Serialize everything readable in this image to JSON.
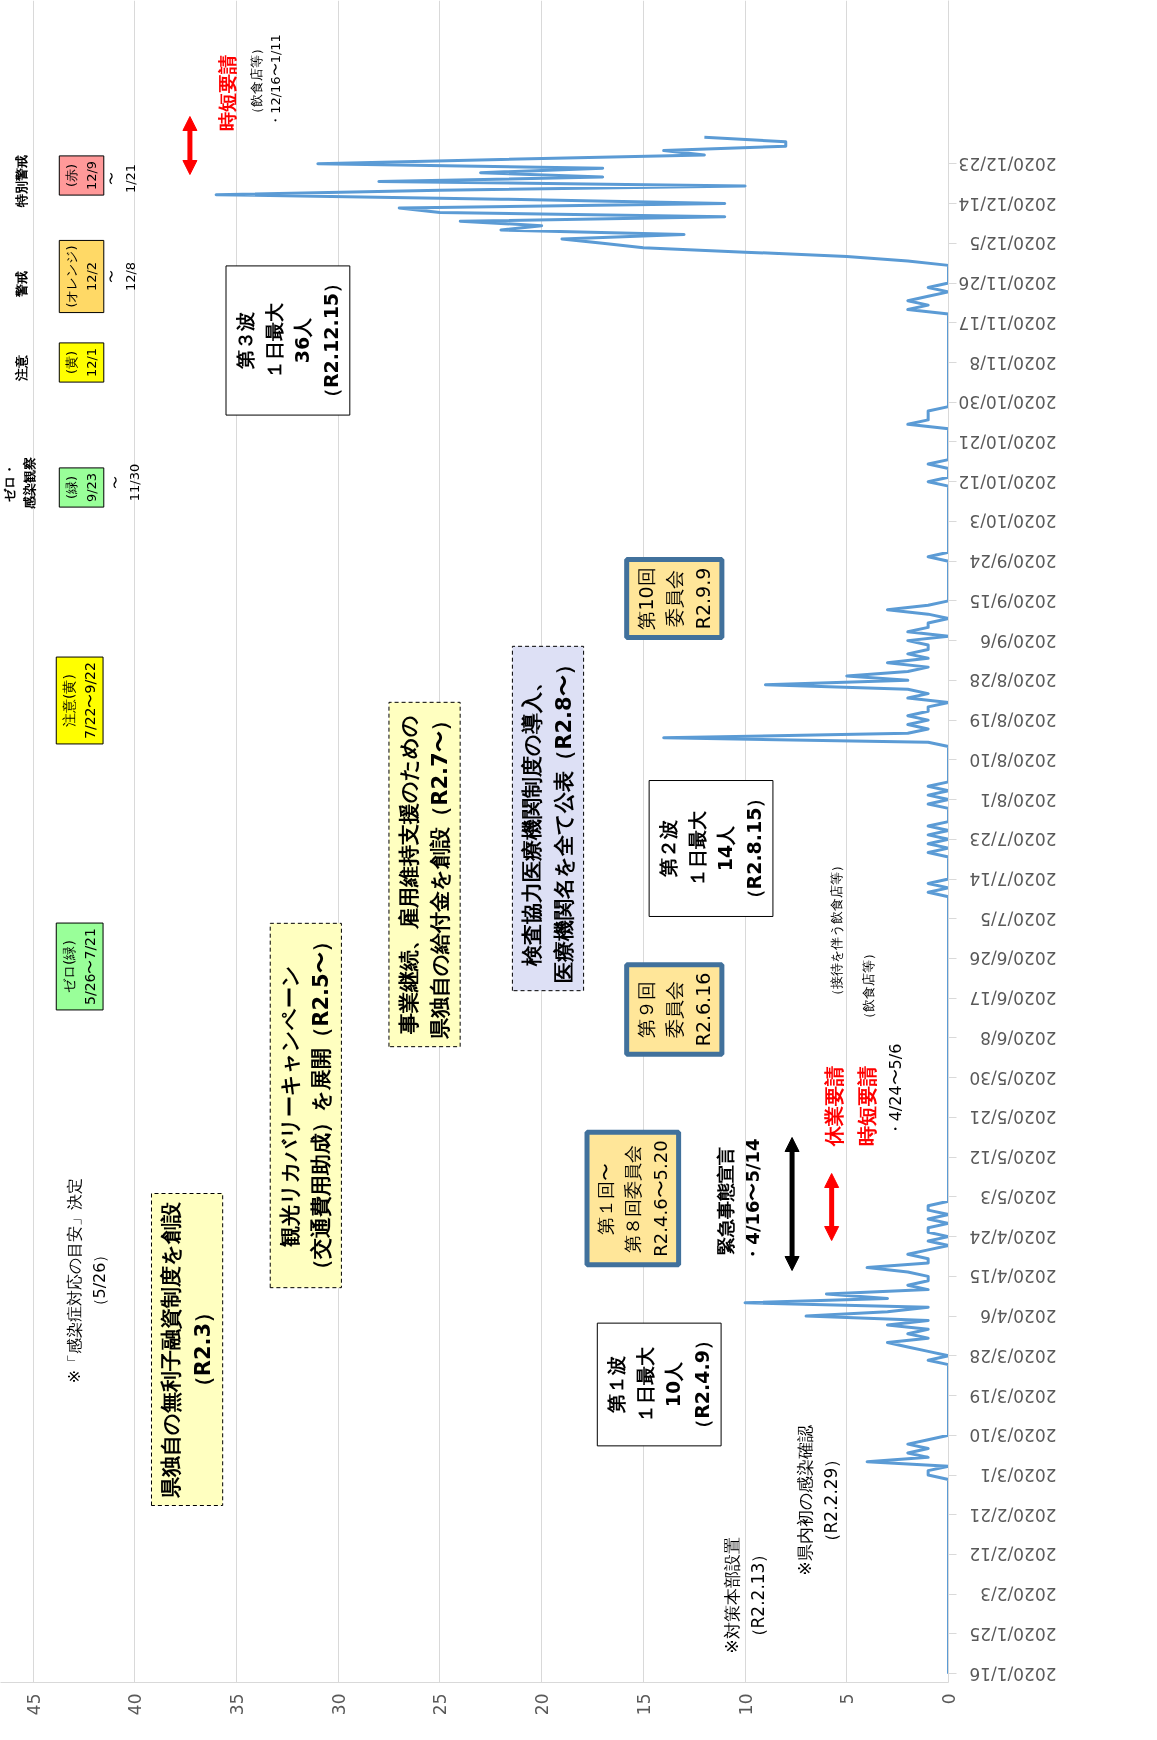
{
  "chart_data": {
    "type": "line",
    "orientation": "horizontal",
    "grid": "x",
    "xlim": [
      46.6,
      0
    ],
    "xticks": [
      0,
      5,
      10,
      15,
      20,
      25,
      30,
      35,
      40,
      45
    ],
    "ylim": [
      "2020-01-14",
      "2021-01-29"
    ],
    "yticks": [
      {
        "value": "2020-01-16",
        "label": "2020/1/16"
      },
      {
        "value": "2020-01-25",
        "label": "2020/1/25"
      },
      {
        "value": "2020-02-03",
        "label": "2020/2/3"
      },
      {
        "value": "2020-02-12",
        "label": "2020/2/12"
      },
      {
        "value": "2020-02-21",
        "label": "2020/2/21"
      },
      {
        "value": "2020-03-01",
        "label": "2020/3/1"
      },
      {
        "value": "2020-03-10",
        "label": "2020/3/10"
      },
      {
        "value": "2020-03-19",
        "label": "2020/3/19"
      },
      {
        "value": "2020-03-28",
        "label": "2020/3/28"
      },
      {
        "value": "2020-04-06",
        "label": "2020/4/6"
      },
      {
        "value": "2020-04-15",
        "label": "2020/4/15"
      },
      {
        "value": "2020-04-24",
        "label": "2020/4/24"
      },
      {
        "value": "2020-05-03",
        "label": "2020/5/3"
      },
      {
        "value": "2020-05-12",
        "label": "2020/5/12"
      },
      {
        "value": "2020-05-21",
        "label": "2020/5/21"
      },
      {
        "value": "2020-05-30",
        "label": "2020/5/30"
      },
      {
        "value": "2020-06-08",
        "label": "2020/6/8"
      },
      {
        "value": "2020-06-17",
        "label": "2020/6/17"
      },
      {
        "value": "2020-06-26",
        "label": "2020/6/26"
      },
      {
        "value": "2020-07-05",
        "label": "2020/7/5"
      },
      {
        "value": "2020-07-14",
        "label": "2020/7/14"
      },
      {
        "value": "2020-07-23",
        "label": "2020/7/23"
      },
      {
        "value": "2020-08-01",
        "label": "2020/8/1"
      },
      {
        "value": "2020-08-10",
        "label": "2020/8/10"
      },
      {
        "value": "2020-08-19",
        "label": "2020/8/19"
      },
      {
        "value": "2020-08-28",
        "label": "2020/8/28"
      },
      {
        "value": "2020-09-06",
        "label": "2020/9/6"
      },
      {
        "value": "2020-09-15",
        "label": "2020/9/15"
      },
      {
        "value": "2020-09-24",
        "label": "2020/9/24"
      },
      {
        "value": "2020-10-03",
        "label": "2020/10/3"
      },
      {
        "value": "2020-10-12",
        "label": "2020/10/12"
      },
      {
        "value": "2020-10-21",
        "label": "2020/10/21"
      },
      {
        "value": "2020-10-30",
        "label": "2020/10/30"
      },
      {
        "value": "2020-11-08",
        "label": "2020/11/8"
      },
      {
        "value": "2020-11-17",
        "label": "2020/11/17"
      },
      {
        "value": "2020-11-26",
        "label": "2020/11/26"
      },
      {
        "value": "2020-12-05",
        "label": "2020/12/5"
      },
      {
        "value": "2020-12-14",
        "label": "2020/12/14"
      },
      {
        "value": "2020-12-23",
        "label": "2020/12/23"
      }
    ],
    "series": [
      {
        "color": "#5b9bd5",
        "x": [
          "2020-01-16",
          "2020-02-29",
          "2020-03-01",
          "2020-03-02",
          "2020-03-03",
          "2020-03-04",
          "2020-03-05",
          "2020-03-06",
          "2020-03-07",
          "2020-03-08",
          "2020-03-09",
          "2020-03-10",
          "2020-03-26",
          "2020-03-27",
          "2020-03-28",
          "2020-03-29",
          "2020-03-30",
          "2020-03-31",
          "2020-04-01",
          "2020-04-02",
          "2020-04-03",
          "2020-04-04",
          "2020-04-05",
          "2020-04-06",
          "2020-04-07",
          "2020-04-08",
          "2020-04-09",
          "2020-04-10",
          "2020-04-11",
          "2020-04-12",
          "2020-04-13",
          "2020-04-14",
          "2020-04-15",
          "2020-04-16",
          "2020-04-17",
          "2020-04-18",
          "2020-04-19",
          "2020-04-20",
          "2020-04-21",
          "2020-04-22",
          "2020-04-23",
          "2020-04-24",
          "2020-04-25",
          "2020-04-26",
          "2020-04-27",
          "2020-04-28",
          "2020-04-29",
          "2020-04-30",
          "2020-05-01",
          "2020-05-02",
          "2020-07-10",
          "2020-07-11",
          "2020-07-12",
          "2020-07-13",
          "2020-07-14",
          "2020-07-19",
          "2020-07-20",
          "2020-07-21",
          "2020-07-22",
          "2020-07-23",
          "2020-07-24",
          "2020-07-25",
          "2020-07-26",
          "2020-07-27",
          "2020-07-30",
          "2020-07-31",
          "2020-08-01",
          "2020-08-02",
          "2020-08-03",
          "2020-08-04",
          "2020-08-05",
          "2020-08-13",
          "2020-08-14",
          "2020-08-15",
          "2020-08-16",
          "2020-08-17",
          "2020-08-18",
          "2020-08-19",
          "2020-08-20",
          "2020-08-21",
          "2020-08-22",
          "2020-08-23",
          "2020-08-24",
          "2020-08-25",
          "2020-08-26",
          "2020-08-27",
          "2020-08-28",
          "2020-08-29",
          "2020-08-30",
          "2020-08-31",
          "2020-09-01",
          "2020-09-02",
          "2020-09-03",
          "2020-09-04",
          "2020-09-05",
          "2020-09-06",
          "2020-09-07",
          "2020-09-08",
          "2020-09-09",
          "2020-09-10",
          "2020-09-11",
          "2020-09-12",
          "2020-09-13",
          "2020-09-14",
          "2020-09-15",
          "2020-09-24",
          "2020-09-25",
          "2020-09-26",
          "2020-10-11",
          "2020-10-12",
          "2020-10-13",
          "2020-10-15",
          "2020-10-16",
          "2020-10-17",
          "2020-10-24",
          "2020-10-25",
          "2020-10-26",
          "2020-10-27",
          "2020-10-28",
          "2020-10-29",
          "2020-11-19",
          "2020-11-20",
          "2020-11-21",
          "2020-11-22",
          "2020-11-23",
          "2020-11-24",
          "2020-11-25",
          "2020-11-26",
          "2020-11-30",
          "2020-12-01",
          "2020-12-02",
          "2020-12-03",
          "2020-12-04",
          "2020-12-05",
          "2020-12-06",
          "2020-12-07",
          "2020-12-08",
          "2020-12-09",
          "2020-12-10",
          "2020-12-11",
          "2020-12-12",
          "2020-12-13",
          "2020-12-14",
          "2020-12-15",
          "2020-12-16",
          "2020-12-17",
          "2020-12-18",
          "2020-12-19",
          "2020-12-20",
          "2020-12-21",
          "2020-12-22",
          "2020-12-23",
          "2020-12-24",
          "2020-12-25",
          "2020-12-26",
          "2020-12-27",
          "2020-12-28",
          "2020-12-29"
        ],
        "values": [
          0,
          0,
          1,
          1,
          0,
          4,
          1,
          2,
          1,
          2,
          1,
          0,
          0,
          1,
          0,
          1,
          2,
          3,
          1,
          2,
          1,
          3,
          1,
          7,
          3,
          1,
          10,
          3,
          6,
          1,
          2,
          1,
          1,
          2,
          4,
          1,
          1,
          2,
          1,
          0,
          1,
          0,
          1,
          1,
          0,
          1,
          0,
          1,
          1,
          0,
          0,
          1,
          0,
          1,
          0,
          0,
          1,
          0,
          1,
          0,
          1,
          0,
          1,
          0,
          0,
          1,
          0,
          1,
          0,
          1,
          0,
          0,
          1,
          14,
          2,
          1,
          2,
          1,
          2,
          1,
          1,
          0,
          2,
          1,
          2,
          9,
          2,
          5,
          2,
          1,
          3,
          1,
          2,
          1,
          1,
          2,
          0,
          2,
          1,
          1,
          0,
          1,
          3,
          1,
          0,
          0,
          1,
          0,
          0,
          1,
          0,
          0,
          1,
          0,
          0,
          2,
          1,
          1,
          1,
          0,
          0,
          2,
          1,
          2,
          1,
          0,
          1,
          0,
          0,
          2,
          5,
          10,
          15,
          17,
          19,
          13,
          22,
          20,
          24,
          11,
          25,
          27,
          11,
          22,
          36,
          25,
          10,
          28,
          17,
          23,
          17,
          31,
          22,
          12,
          14,
          8,
          8,
          12
        ]
      }
    ],
    "annotations": [
      "時短要請",
      "（飲食店等）・12/16〜1/11",
      "特別警戒",
      "(赤)12/9",
      "〜1/21",
      "警戒",
      "(オレンジ)12/2",
      "〜12/8",
      "注意",
      "(黄)12/1",
      "ゼロ・感染観察",
      "(緑)9/23",
      "〜11/30",
      "注意(黄)7/22〜9/22",
      "ゼロ(緑)5/26〜7/21",
      "※「感染症対応の目安」決定（5/26）",
      "県独自の無利子融資制度を創設（R2.3）",
      "観光リカバリーキャンペーン（交通費用助成）を展開（R2.5〜）",
      "事業継続、雇用維持支援のための県独自の給付金を創設（R2.7〜）",
      "検査協力医療機関制度の導入、医療機関名を全て公表（R2.8〜）",
      "第３波１日最大36人（R2.12.15）",
      "第10回委員会R2.9.9",
      "第２波１日最大14人（R2.8.15）",
      "第９回委員会R2.6.16",
      "第１回〜第８回委員会R2.4.6〜5.20",
      "第１波１日最大10人（R2.4.9）",
      "緊急事態宣言・4/16〜5/14",
      "休業要請",
      "（接待を伴う飲食店等）",
      "時短要請",
      "（飲食店等）",
      "・4/24〜5/6",
      "※対策本部設置（R2.2.13）",
      "※県内初の感染確認（R2.2.29）"
    ]
  }
}
